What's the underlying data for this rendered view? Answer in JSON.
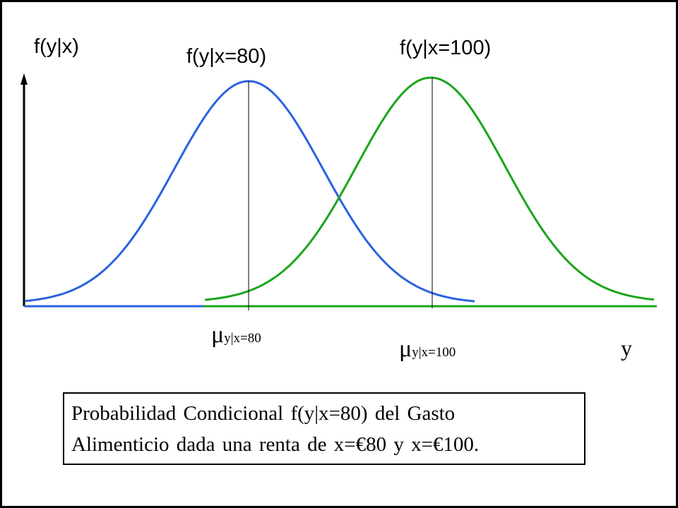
{
  "labels": {
    "y_axis": "f(y|x)",
    "x_axis": "y",
    "curve_80": "f(y|x=80)",
    "curve_100": "f(y|x=100)"
  },
  "means": {
    "mu_80": {
      "symbol": "μ",
      "subscript": "y|x=80"
    },
    "mu_100": {
      "symbol": "μ",
      "subscript": "y|x=100"
    }
  },
  "caption": {
    "line1": "Probabilidad Condicional f(y|x=80) del Gasto",
    "line2": "Alimenticio dada una renta de x=€80 y x=€100."
  },
  "colors": {
    "curve_80": "#2a62e0",
    "curve_100": "#1aa51a",
    "axes": "#000000"
  }
}
